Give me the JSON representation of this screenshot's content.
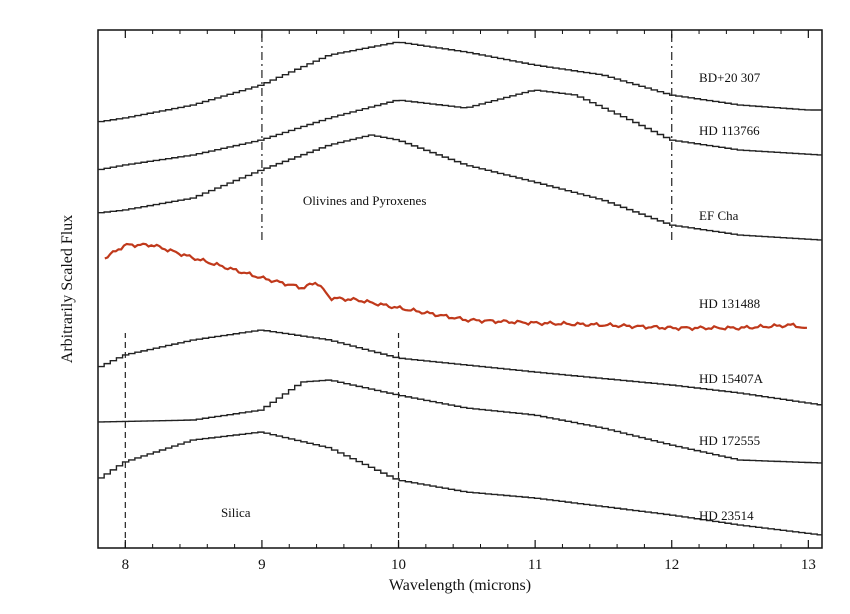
{
  "chart_data": {
    "type": "line",
    "title": "",
    "xlabel": "Wavelength (microns)",
    "ylabel": "Arbitrarily Scaled Flux",
    "xlim": [
      7.8,
      13.1
    ],
    "ylim": [
      0,
      518
    ],
    "xticks": [
      8,
      9,
      10,
      11,
      12,
      13
    ],
    "xtick_labels": [
      "8",
      "9",
      "10",
      "11",
      "12",
      "13"
    ],
    "grid": false,
    "series": [
      {
        "name": "BD+20 307",
        "color": "#222222",
        "stepped": true,
        "label_pos": [
          12.2,
          471
        ],
        "x": [
          7.8,
          8,
          8.5,
          9,
          9.5,
          10,
          10.5,
          11,
          11.5,
          12,
          12.5,
          13,
          13.1
        ],
        "y": [
          426,
          430,
          443,
          463,
          493,
          506,
          496,
          483,
          473,
          453,
          443,
          438,
          438
        ]
      },
      {
        "name": "HD 113766",
        "color": "#222222",
        "stepped": true,
        "label_pos": [
          12.2,
          418
        ],
        "x": [
          7.8,
          8,
          8.5,
          9,
          9.5,
          10,
          10.5,
          11,
          11.3,
          11.7,
          12,
          12.5,
          13.1
        ],
        "y": [
          378,
          383,
          393,
          408,
          430,
          448,
          440,
          458,
          453,
          428,
          408,
          398,
          393
        ]
      },
      {
        "name": "EF Cha",
        "color": "#222222",
        "stepped": true,
        "label_pos": [
          12.2,
          333
        ],
        "x": [
          7.8,
          8,
          8.5,
          9,
          9.5,
          9.8,
          10,
          10.5,
          11,
          11.5,
          12,
          12.5,
          13.1
        ],
        "y": [
          335,
          338,
          350,
          378,
          403,
          413,
          408,
          383,
          366,
          348,
          323,
          313,
          308
        ]
      },
      {
        "name": "HD 131488",
        "color": "#c0391b",
        "stepped": false,
        "label_pos": [
          12.2,
          245
        ],
        "x": [
          7.85,
          8,
          8.2,
          8.5,
          9,
          9.3,
          9.4,
          9.5,
          9.7,
          10,
          10.5,
          11,
          11.5,
          12,
          12.5,
          12.9,
          13
        ],
        "y": [
          290,
          303,
          303,
          290,
          270,
          260,
          266,
          250,
          248,
          240,
          228,
          225,
          223,
          220,
          220,
          223,
          218
        ]
      },
      {
        "name": "HD 15407A",
        "color": "#222222",
        "stepped": true,
        "label_pos": [
          12.2,
          170
        ],
        "x": [
          7.8,
          8,
          8.5,
          9,
          9.5,
          10,
          10.5,
          11,
          12,
          12.5,
          13.1
        ],
        "y": [
          180,
          193,
          208,
          218,
          208,
          190,
          183,
          176,
          163,
          155,
          143
        ]
      },
      {
        "name": "HD 172555",
        "color": "#222222",
        "stepped": true,
        "label_pos": [
          12.2,
          108
        ],
        "x": [
          7.8,
          8.5,
          9,
          9.3,
          9.5,
          10,
          10.5,
          11,
          11.5,
          12,
          12.5,
          13.1
        ],
        "y": [
          126,
          128,
          138,
          166,
          168,
          153,
          140,
          133,
          120,
          103,
          88,
          85
        ]
      },
      {
        "name": "HD 23514",
        "color": "#222222",
        "stepped": true,
        "label_pos": [
          12.2,
          33
        ],
        "x": [
          7.8,
          8,
          8.5,
          9,
          9.5,
          10,
          10.5,
          11,
          12,
          12.5,
          13.1
        ],
        "y": [
          68,
          86,
          108,
          116,
          100,
          68,
          56,
          50,
          33,
          23,
          13
        ]
      }
    ],
    "vlines": [
      {
        "x": 9,
        "y": [
          308,
          518
        ],
        "style": "dashdot"
      },
      {
        "x": 12,
        "y": [
          308,
          518
        ],
        "style": "dashdot"
      },
      {
        "x": 8,
        "y": [
          0,
          215
        ],
        "style": "dashed"
      },
      {
        "x": 10,
        "y": [
          0,
          215
        ],
        "style": "dashed"
      }
    ],
    "annotations": [
      {
        "text": "Olivines and Pyroxenes",
        "x": 9.3,
        "y": 348
      },
      {
        "text": "Silica",
        "x": 8.7,
        "y": 36
      }
    ]
  }
}
